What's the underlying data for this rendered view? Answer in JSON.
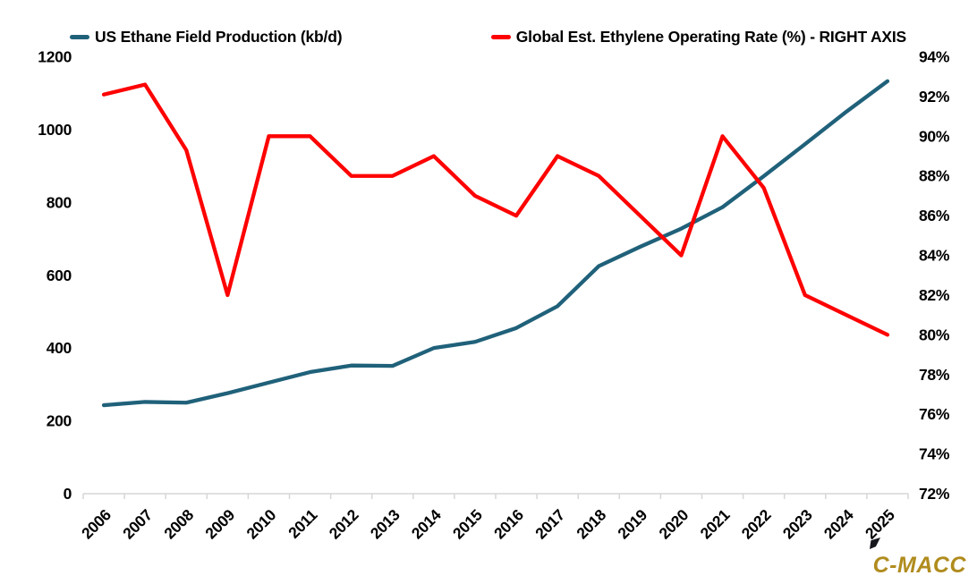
{
  "legend": [
    {
      "label": "US Ethane Field Production (kb/d)",
      "color": "#20617A"
    },
    {
      "label": "Global Est. Ethylene Operating Rate (%) - RIGHT AXIS",
      "color": "#FE0000"
    }
  ],
  "watermark": "C-MACC",
  "watermark_color": "#B08C1E",
  "axis_color": "#D6D6D6",
  "chart_data": {
    "type": "line",
    "title": "",
    "xlabel": "",
    "ylabel_left": "US Ethane Field Production (kb/d)",
    "ylabel_right": "Global Est. Ethylene Operating Rate (%)",
    "grid": false,
    "legend_position": "top",
    "categories": [
      "2006",
      "2007",
      "2008",
      "2009",
      "2010",
      "2011",
      "2012",
      "2013",
      "2014",
      "2015",
      "2016",
      "2017",
      "2018",
      "2019",
      "2020",
      "2021",
      "2022",
      "2023",
      "2024",
      "2025"
    ],
    "series": [
      {
        "name": "US Ethane Field Production (kb/d)",
        "axis": "left",
        "color": "#20617A",
        "values": [
          243,
          252,
          250,
          276,
          305,
          334,
          352,
          351,
          400,
          417,
          455,
          515,
          625,
          678,
          728,
          787,
          872,
          960,
          1049,
          1133
        ]
      },
      {
        "name": "Global Est. Ethylene Operating Rate (%) - RIGHT AXIS",
        "axis": "right",
        "color": "#FE0000",
        "values": [
          92.1,
          92.6,
          89.3,
          82,
          90,
          90,
          88,
          88,
          89,
          87,
          86,
          89,
          88,
          86,
          84,
          90,
          87.4,
          82,
          81,
          80
        ]
      }
    ],
    "left_axis": {
      "min": 0,
      "max": 1200,
      "tick_step": 200,
      "tick_labels": [
        "0",
        "200",
        "400",
        "600",
        "800",
        "1000",
        "1200"
      ]
    },
    "right_axis": {
      "min": 72,
      "max": 94,
      "tick_step": 2,
      "tick_labels": [
        "72%",
        "74%",
        "76%",
        "78%",
        "80%",
        "82%",
        "84%",
        "86%",
        "88%",
        "90%",
        "92%",
        "94%"
      ]
    }
  }
}
